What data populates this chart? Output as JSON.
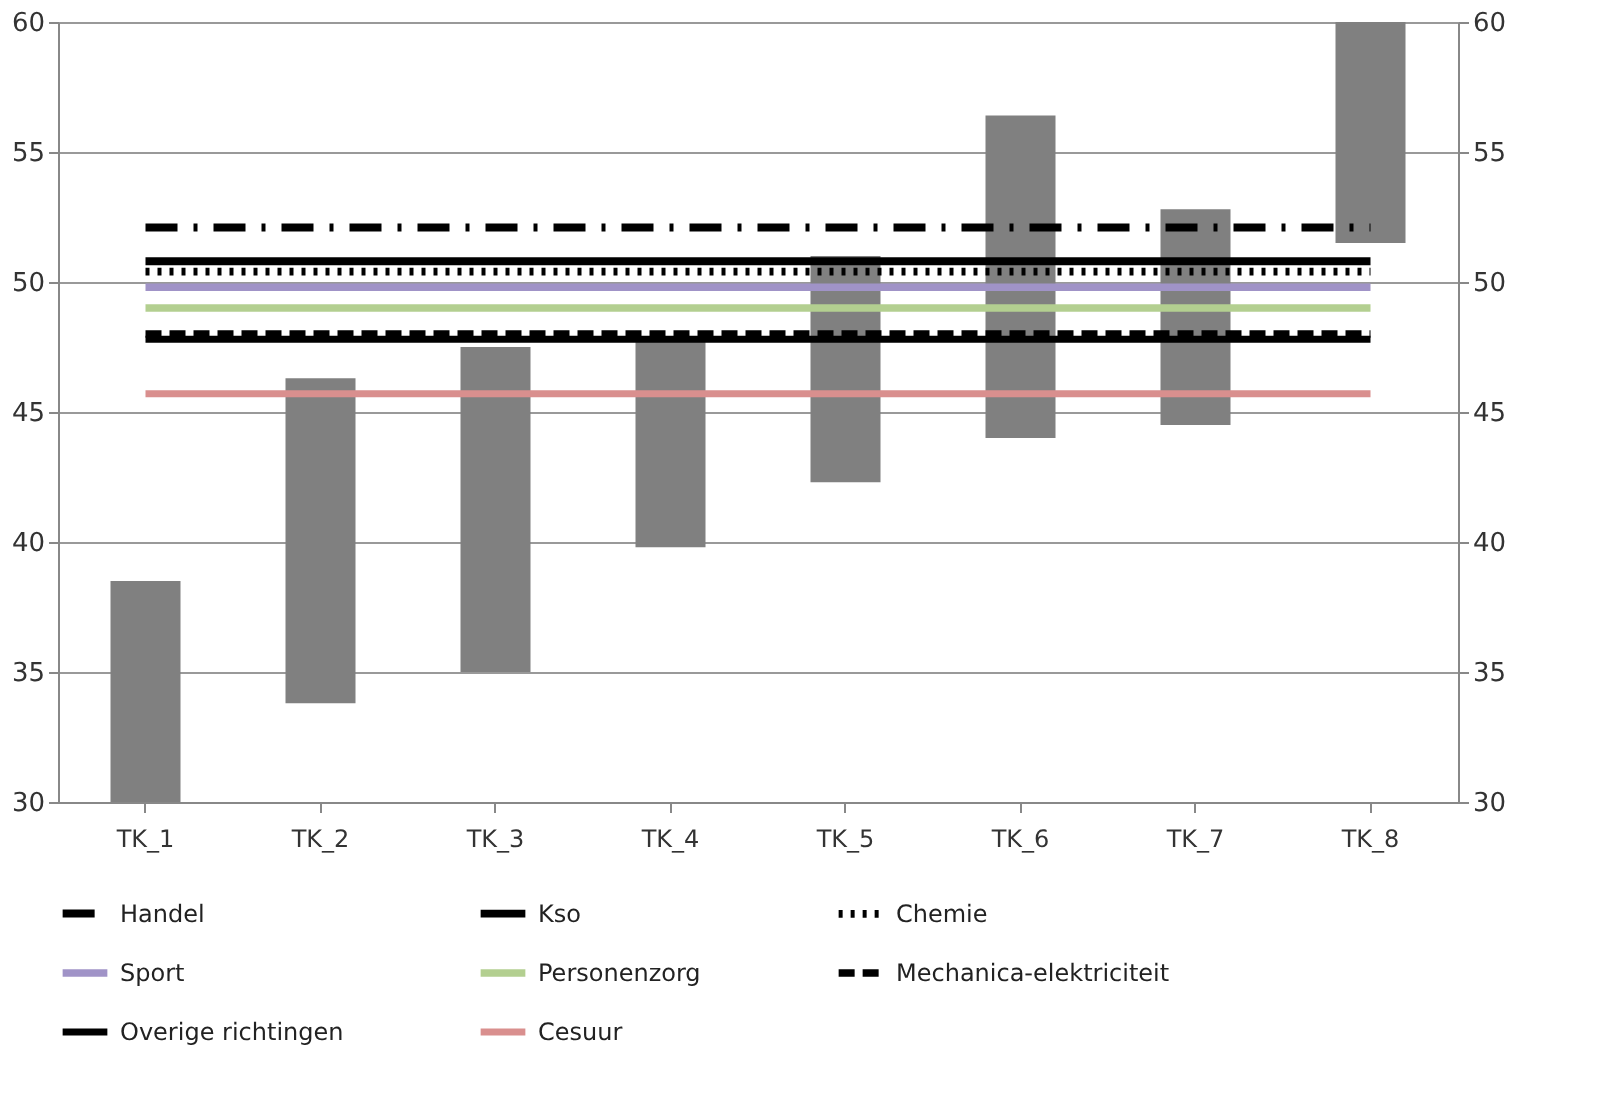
{
  "chart_data": {
    "type": "bar",
    "categories": [
      "TK_1",
      "TK_2",
      "TK_3",
      "TK_4",
      "TK_5",
      "TK_6",
      "TK_7",
      "TK_8"
    ],
    "series": [
      {
        "color": "#808080",
        "base": [
          30,
          33.8,
          35.0,
          39.8,
          42.3,
          44.0,
          44.5,
          51.5
        ],
        "values": [
          8.5,
          12.5,
          12.5,
          8.1,
          8.7,
          12.4,
          8.3,
          8.5
        ]
      },
      {
        "type": "line",
        "name": "Handel",
        "color": "#000000",
        "line_style": "dashdot",
        "values": [
          52.1,
          52.1,
          52.1,
          52.1,
          52.1,
          52.1,
          52.1,
          52.1
        ]
      },
      {
        "type": "line",
        "name": "Kso",
        "color": "#000000",
        "line_style": "solid",
        "values": [
          50.8,
          50.8,
          50.8,
          50.8,
          50.8,
          50.8,
          50.8,
          50.8
        ]
      },
      {
        "type": "line",
        "name": "Chemie",
        "color": "#000000",
        "line_style": "dotted",
        "values": [
          50.4,
          50.4,
          50.4,
          50.4,
          50.4,
          50.4,
          50.4,
          50.4
        ]
      },
      {
        "type": "line",
        "name": "Sport",
        "color": "#a093c7",
        "line_style": "solid",
        "values": [
          49.8,
          49.8,
          49.8,
          49.8,
          49.8,
          49.8,
          49.8,
          49.8
        ]
      },
      {
        "type": "line",
        "name": "Personenzorg",
        "color": "#b3cf90",
        "line_style": "solid",
        "values": [
          49.0,
          49.0,
          49.0,
          49.0,
          49.0,
          49.0,
          49.0,
          49.0
        ]
      },
      {
        "type": "line",
        "name": "Mechanica-elektriciteit",
        "color": "#000000",
        "line_style": "dashed",
        "values": [
          48.0,
          48.0,
          48.0,
          48.0,
          48.0,
          48.0,
          48.0,
          48.0
        ]
      },
      {
        "type": "line",
        "name": "Overige richtingen",
        "color": "#000000",
        "line_style": "solid",
        "values": [
          47.8,
          47.8,
          47.8,
          47.8,
          47.8,
          47.8,
          47.8,
          47.8
        ]
      },
      {
        "type": "line",
        "name": "Cesuur",
        "color": "#d98f8e",
        "line_style": "solid",
        "values": [
          45.7,
          45.7,
          45.7,
          45.7,
          45.7,
          45.7,
          45.7,
          45.7
        ]
      }
    ],
    "ylim": [
      30,
      60
    ],
    "yticks": [
      30,
      35,
      40,
      45,
      50,
      55,
      60
    ],
    "y2lim": [
      30,
      60
    ],
    "y2ticks": [
      30,
      35,
      40,
      45,
      50,
      55,
      60
    ],
    "grid": "y",
    "legend": "bottom"
  }
}
